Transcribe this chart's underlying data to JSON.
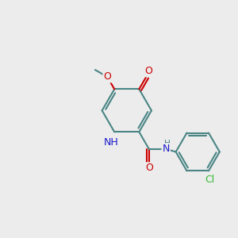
{
  "background_color": "#ececec",
  "bond_color": "#4a8585",
  "bond_width": 1.5,
  "dbo": 0.018,
  "atom_colors": {
    "N": "#1a1acc",
    "O": "#cc0000",
    "Cl": "#33bb33",
    "C": "#4a8585"
  },
  "font_size": 9.0,
  "fig_size": [
    3.0,
    3.0
  ],
  "dpi": 100,
  "xlim": [
    -0.62,
    1.05
  ],
  "ylim": [
    -0.05,
    1.05
  ]
}
